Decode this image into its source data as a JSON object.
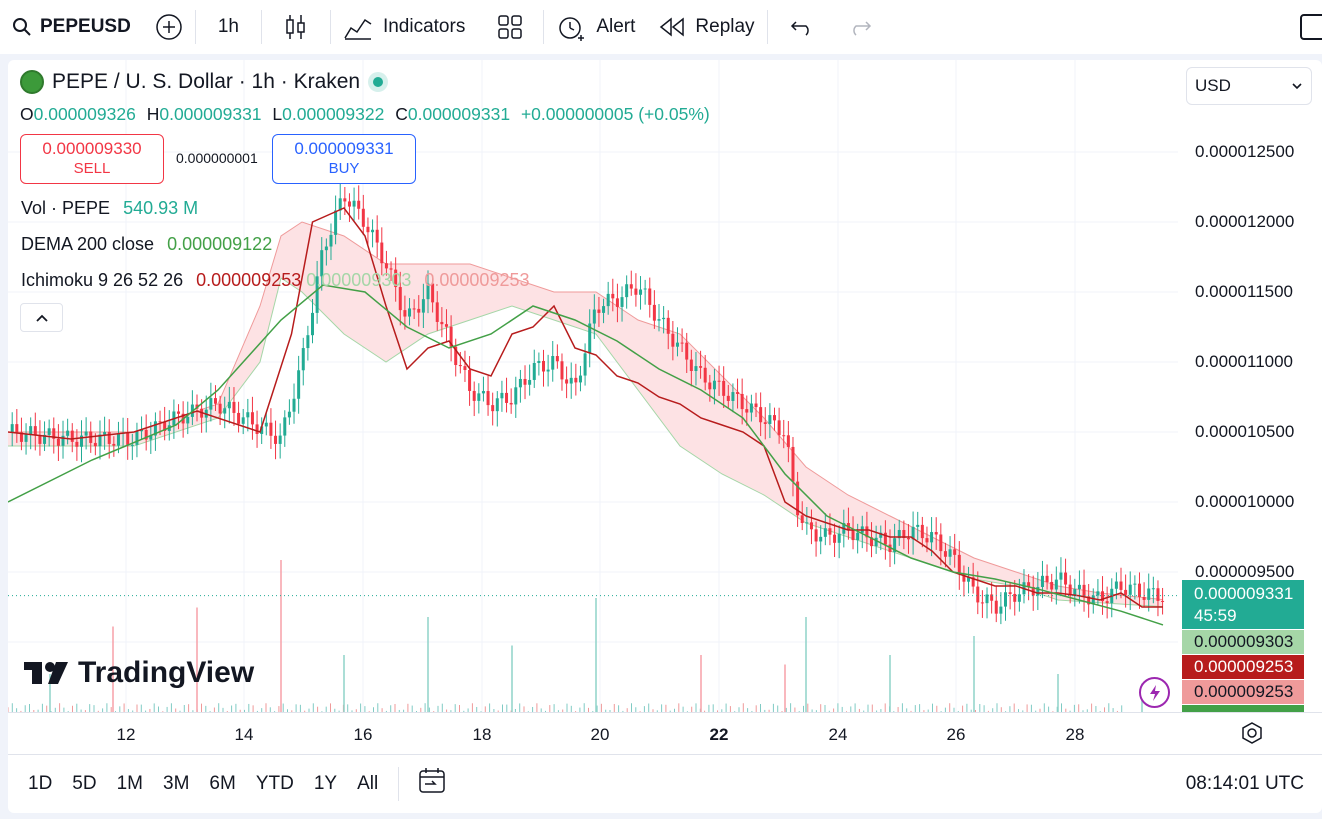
{
  "toolbar": {
    "symbol": "PEPEUSD",
    "interval": "1h",
    "indicators": "Indicators",
    "alert": "Alert",
    "replay": "Replay"
  },
  "header": {
    "title": "PEPE / U. S. Dollar · 1h · Kraken"
  },
  "ohlc": {
    "o_label": "O",
    "o": "0.000009326",
    "h_label": "H",
    "h": "0.000009331",
    "l_label": "L",
    "l": "0.000009322",
    "c_label": "C",
    "c": "0.000009331",
    "change": "+0.000000005 (+0.05%)"
  },
  "trade": {
    "sell_price": "0.000009330",
    "sell_label": "SELL",
    "spread": "0.000000001",
    "buy_price": "0.000009331",
    "buy_label": "BUY"
  },
  "legend": {
    "vol_label": "Vol · PEPE",
    "vol_value": "540.93 M",
    "dema_label": "DEMA 200 close",
    "dema_value": "0.000009122",
    "ichi_label": "Ichimoku 9 26 52 26",
    "ichi_v1": "0.000009253",
    "ichi_v2": "0.000009303",
    "ichi_v3": "0.000009253"
  },
  "currency": "USD",
  "price_axis": [
    "0.000012500",
    "0.000012000",
    "0.000011500",
    "0.000011000",
    "0.000010500",
    "0.000010000",
    "0.000009500"
  ],
  "tags": {
    "last": "0.000009331",
    "countdown": "45:59",
    "lead_b": "0.000009303",
    "conv": "0.000009253",
    "base": "0.000009253"
  },
  "xaxis": [
    "12",
    "14",
    "16",
    "18",
    "20",
    "22",
    "24",
    "26",
    "28"
  ],
  "ranges": [
    "1D",
    "5D",
    "1M",
    "3M",
    "6M",
    "YTD",
    "1Y",
    "All"
  ],
  "clock": "08:14:01 UTC",
  "brand": "TradingView",
  "colors": {
    "up": "#22ab94",
    "down": "#f23645",
    "conv": "#b71c1c",
    "dema": "#43a047",
    "cloud_green": "#c8e6c9",
    "cloud_red": "#ffcdd2"
  },
  "chart_data": {
    "type": "candlestick",
    "ylim": [
      9.3e-06,
      1.26e-05
    ],
    "x_ticks": [
      "12",
      "14",
      "16",
      "18",
      "20",
      "22",
      "24",
      "26",
      "28"
    ],
    "price_labels": [
      "0.000012500",
      "0.000012000",
      "0.000011500",
      "0.000011000",
      "0.000010500",
      "0.000010000",
      "0.000009500"
    ],
    "close_path": [
      [
        0,
        10.5
      ],
      [
        3,
        10.45
      ],
      [
        6,
        10.45
      ],
      [
        8,
        10.6
      ],
      [
        10,
        10.7
      ],
      [
        13,
        10.45
      ],
      [
        14,
        11.0
      ],
      [
        15,
        11.8
      ],
      [
        16,
        12.2
      ],
      [
        17,
        12.0
      ],
      [
        18,
        11.7
      ],
      [
        19,
        11.3
      ],
      [
        20,
        11.5
      ],
      [
        21,
        11.15
      ],
      [
        22,
        10.8
      ],
      [
        23,
        10.7
      ],
      [
        24,
        10.75
      ],
      [
        25,
        10.95
      ],
      [
        26,
        11.0
      ],
      [
        27,
        10.8
      ],
      [
        28,
        11.4
      ],
      [
        29,
        11.45
      ],
      [
        30,
        11.55
      ],
      [
        31,
        11.3
      ],
      [
        32,
        11.1
      ],
      [
        33,
        10.9
      ],
      [
        34,
        10.8
      ],
      [
        35,
        10.7
      ],
      [
        36,
        10.6
      ],
      [
        37,
        10.5
      ],
      [
        37.5,
        10.0
      ],
      [
        38,
        9.8
      ],
      [
        39,
        9.75
      ],
      [
        40,
        9.8
      ],
      [
        41,
        9.75
      ],
      [
        42,
        9.7
      ],
      [
        43,
        9.8
      ],
      [
        44,
        9.75
      ],
      [
        45,
        9.6
      ],
      [
        46,
        9.35
      ],
      [
        47,
        9.25
      ],
      [
        48,
        9.35
      ],
      [
        49,
        9.4
      ],
      [
        50,
        9.45
      ],
      [
        51,
        9.35
      ],
      [
        52,
        9.3
      ],
      [
        53,
        9.4
      ],
      [
        54,
        9.35
      ],
      [
        55,
        9.33
      ]
    ],
    "conversion_line": [
      [
        0,
        10.5
      ],
      [
        3,
        10.45
      ],
      [
        6,
        10.5
      ],
      [
        9,
        10.65
      ],
      [
        12,
        10.5
      ],
      [
        13.5,
        11.2
      ],
      [
        14.5,
        12.0
      ],
      [
        16,
        12.1
      ],
      [
        17,
        11.9
      ],
      [
        18,
        11.4
      ],
      [
        19,
        10.95
      ],
      [
        20,
        11.1
      ],
      [
        21,
        11.15
      ],
      [
        22,
        10.95
      ],
      [
        23,
        10.9
      ],
      [
        24,
        11.2
      ],
      [
        25,
        11.25
      ],
      [
        26,
        11.4
      ],
      [
        27,
        11.1
      ],
      [
        28,
        11.05
      ],
      [
        29,
        10.9
      ],
      [
        30,
        10.85
      ],
      [
        31,
        10.75
      ],
      [
        32,
        10.7
      ],
      [
        33,
        10.6
      ],
      [
        34,
        10.55
      ],
      [
        35,
        10.5
      ],
      [
        36,
        10.4
      ],
      [
        37,
        10.0
      ],
      [
        38,
        9.9
      ],
      [
        39,
        9.85
      ],
      [
        40,
        9.8
      ],
      [
        41,
        9.8
      ],
      [
        42,
        9.75
      ],
      [
        43,
        9.75
      ],
      [
        44,
        9.65
      ],
      [
        45,
        9.5
      ],
      [
        46,
        9.45
      ],
      [
        47,
        9.4
      ],
      [
        48,
        9.4
      ],
      [
        49,
        9.35
      ],
      [
        50,
        9.35
      ],
      [
        51,
        9.33
      ],
      [
        52,
        9.3
      ],
      [
        53,
        9.35
      ],
      [
        54,
        9.25
      ],
      [
        55,
        9.25
      ]
    ],
    "dema_200": [
      [
        0,
        10.0
      ],
      [
        4,
        10.3
      ],
      [
        8,
        10.55
      ],
      [
        10,
        10.8
      ],
      [
        13,
        11.3
      ],
      [
        15,
        11.55
      ],
      [
        17,
        11.5
      ],
      [
        19,
        11.25
      ],
      [
        21,
        11.1
      ],
      [
        23,
        11.2
      ],
      [
        25,
        11.4
      ],
      [
        27,
        11.3
      ],
      [
        29,
        11.15
      ],
      [
        31,
        10.95
      ],
      [
        33,
        10.8
      ],
      [
        35,
        10.6
      ],
      [
        37,
        10.2
      ],
      [
        39,
        9.9
      ],
      [
        41,
        9.75
      ],
      [
        43,
        9.6
      ],
      [
        45,
        9.5
      ],
      [
        47,
        9.45
      ],
      [
        49,
        9.38
      ],
      [
        51,
        9.3
      ],
      [
        53,
        9.22
      ],
      [
        55,
        9.122
      ]
    ],
    "cloud": [
      [
        0,
        10.4,
        10.5
      ],
      [
        6,
        10.4,
        10.5
      ],
      [
        10,
        10.6,
        10.7
      ],
      [
        12,
        11.0,
        11.4
      ],
      [
        13,
        11.6,
        11.9
      ],
      [
        14,
        11.5,
        12.0
      ],
      [
        16,
        11.2,
        11.9
      ],
      [
        18,
        11.0,
        11.7
      ],
      [
        20,
        11.2,
        11.7
      ],
      [
        22,
        11.3,
        11.7
      ],
      [
        24,
        11.4,
        11.6
      ],
      [
        26,
        11.3,
        11.5
      ],
      [
        28,
        11.2,
        11.5
      ],
      [
        30,
        10.8,
        11.3
      ],
      [
        32,
        10.4,
        11.2
      ],
      [
        34,
        10.2,
        10.9
      ],
      [
        36,
        10.05,
        10.6
      ],
      [
        38,
        9.85,
        10.25
      ],
      [
        40,
        9.75,
        10.05
      ],
      [
        42,
        9.65,
        9.9
      ],
      [
        44,
        9.55,
        9.75
      ],
      [
        46,
        9.45,
        9.6
      ],
      [
        48,
        9.4,
        9.5
      ],
      [
        50,
        9.3,
        9.4
      ],
      [
        52,
        9.28,
        9.35
      ],
      [
        55,
        9.253,
        9.303
      ]
    ],
    "volume_spikes": [
      [
        2,
        0.2
      ],
      [
        5,
        0.45
      ],
      [
        9,
        0.55
      ],
      [
        13,
        0.8
      ],
      [
        16,
        0.3
      ],
      [
        20,
        0.5
      ],
      [
        24,
        0.35
      ],
      [
        28,
        0.6
      ],
      [
        33,
        0.3
      ],
      [
        37,
        0.25
      ],
      [
        38,
        0.5
      ],
      [
        42,
        0.3
      ],
      [
        46,
        0.4
      ],
      [
        50,
        0.2
      ],
      [
        54,
        0.15
      ]
    ]
  }
}
